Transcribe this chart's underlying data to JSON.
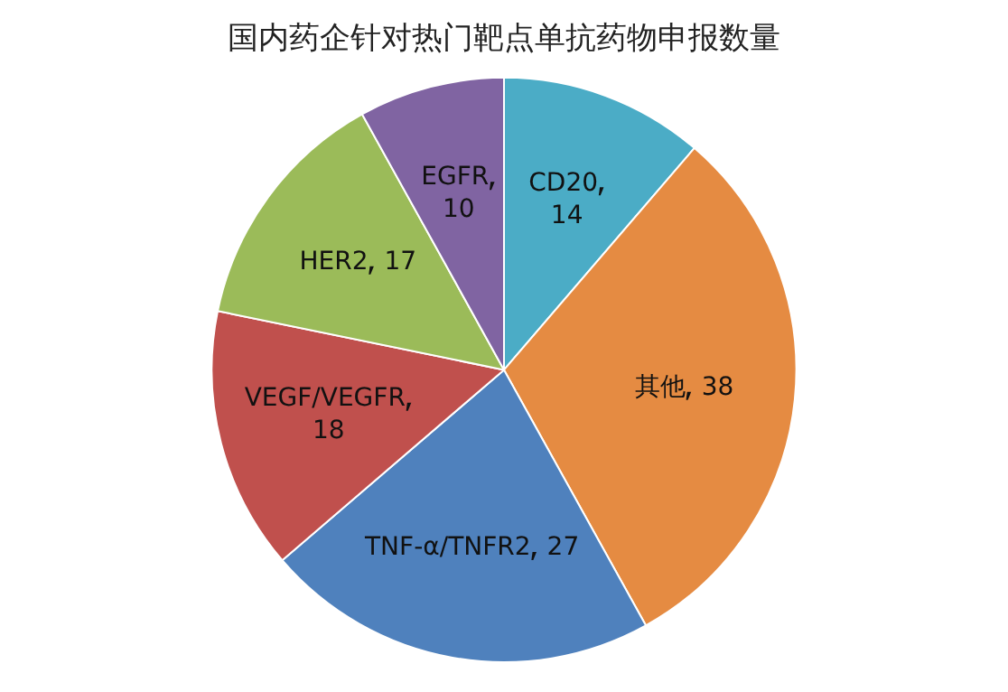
{
  "chart_data": {
    "type": "pie",
    "title": "国内药企针对热门靶点单抗药物申报数量",
    "categories": [
      "CD20",
      "其他",
      "TNF-α/TNFR2",
      "VEGF/VEGFR",
      "HER2",
      "EGFR"
    ],
    "values": [
      14,
      38,
      27,
      18,
      17,
      10
    ],
    "colors": [
      "#4bacc6",
      "#e58b42",
      "#4f81bd",
      "#c0504d",
      "#9bbb59",
      "#8064a2"
    ],
    "data_labels": true,
    "legend": false
  }
}
